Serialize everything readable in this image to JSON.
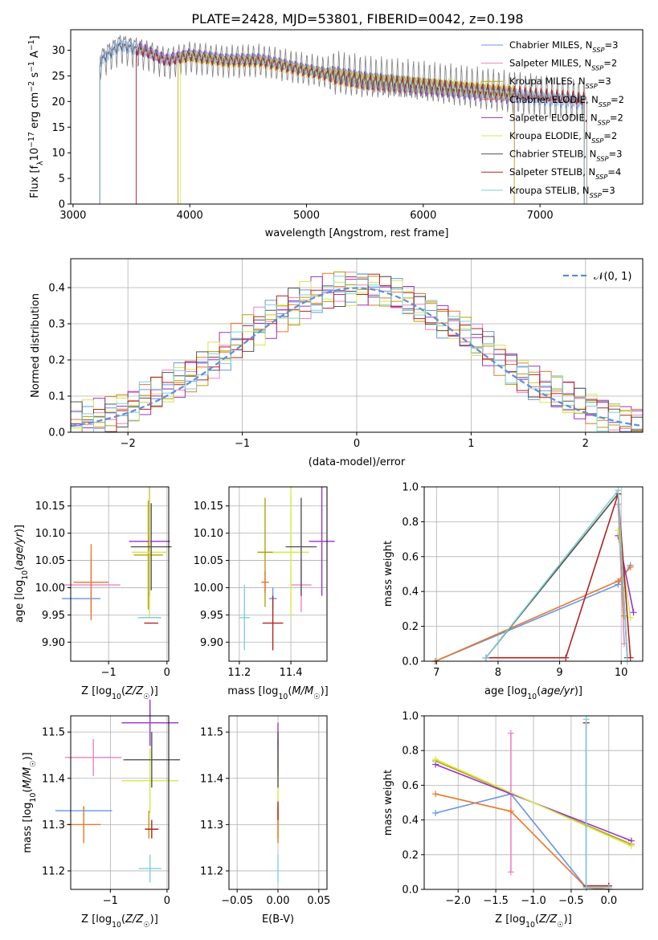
{
  "figure_title": "PLATE=2428, MJD=53801, FIBERID=0042, z=0.198",
  "models": [
    {
      "name": "Chabrier MILES",
      "nssp": "3",
      "color": "#6495ED"
    },
    {
      "name": "Salpeter MILES",
      "nssp": "2",
      "color": "#EE82C0"
    },
    {
      "name": "Kroupa MILES",
      "nssp": "3",
      "color": "#B8A000"
    },
    {
      "name": "Chabrier ELODIE",
      "nssp": "2",
      "color": "#E8782A"
    },
    {
      "name": "Salpeter ELODIE",
      "nssp": "2",
      "color": "#9932CC"
    },
    {
      "name": "Kroupa ELODIE",
      "nssp": "2",
      "color": "#D4E84A"
    },
    {
      "name": "Chabrier STELIB",
      "nssp": "3",
      "color": "#555555"
    },
    {
      "name": "Salpeter STELIB",
      "nssp": "4",
      "color": "#B22222"
    },
    {
      "name": "Kroupa STELIB",
      "nssp": "3",
      "color": "#7FD0D8"
    }
  ],
  "chart_data": [
    {
      "type": "line",
      "id": "spectrum",
      "xlabel": "wavelength [Angstrom, rest frame]",
      "ylabel": "Flux [f_λ 10^-17 erg cm^-2 s^-1 A^-1]",
      "xlim": [
        2980,
        7880
      ],
      "ylim": [
        0,
        34
      ],
      "xticks": [
        3000,
        4000,
        5000,
        6000,
        7000
      ],
      "yticks": [
        0,
        5,
        10,
        15,
        20,
        25,
        30
      ],
      "grid": false,
      "legend_position": "top-right",
      "continuum": {
        "x": [
          3230,
          3400,
          3600,
          3800,
          4000,
          4300,
          4600,
          5000,
          5500,
          6000,
          6500,
          7000,
          7500
        ],
        "y": [
          28,
          31,
          30,
          28,
          29,
          28,
          28,
          26,
          24,
          23,
          22,
          21,
          20
        ]
      },
      "data_range": {
        "start": 3230,
        "end": 7400
      },
      "model_starts": [
        3230,
        3230,
        3900,
        3540,
        3540,
        3920,
        3230,
        3540,
        3230
      ],
      "model_ends": [
        7380,
        7380,
        6780,
        6780,
        6780,
        6780,
        7380,
        7380,
        7380
      ]
    },
    {
      "type": "line",
      "id": "residuals",
      "xlabel": "(data-model)/error",
      "ylabel": "Normed distribution",
      "xlim": [
        -2.5,
        2.5
      ],
      "ylim": [
        0,
        0.48
      ],
      "xticks": [
        -2,
        -1,
        0,
        1,
        2
      ],
      "yticks": [
        0.0,
        0.1,
        0.2,
        0.3,
        0.4
      ],
      "grid": true,
      "bin_width": 0.1,
      "reference_curve": "N(0,1)",
      "legend_position": "top-right"
    },
    {
      "type": "scatter",
      "id": "age-vs-Z",
      "xlabel": "Z [log10(Z/Z☉)]",
      "ylabel": "age  [log10(age/yr)]",
      "xlim": [
        -1.65,
        0.03
      ],
      "ylim": [
        9.865,
        10.185
      ],
      "xticks": [
        -1,
        0
      ],
      "yticks": [
        9.9,
        9.95,
        10.0,
        10.05,
        10.1,
        10.15
      ],
      "grid": true,
      "x": [
        -1.47,
        -1.3,
        -0.32,
        -1.3,
        -0.3,
        -0.3,
        -0.27,
        -0.27,
        -0.3
      ],
      "y": [
        9.98,
        10.005,
        10.06,
        10.01,
        10.085,
        10.065,
        10.075,
        9.935,
        9.945
      ],
      "xerr": [
        0.33,
        0.5,
        0.25,
        0.3,
        0.35,
        0.3,
        0.35,
        0.12,
        0.2
      ],
      "yerr": [
        0.0,
        0.05,
        0.1,
        0.07,
        0.1,
        0.12,
        0.08,
        0.0,
        0.0
      ]
    },
    {
      "type": "scatter",
      "id": "age-vs-mass",
      "xlabel": "mass [log10(M/M☉)]",
      "ylabel": "",
      "xlim": [
        11.16,
        11.54
      ],
      "ylim": [
        9.865,
        10.185
      ],
      "xticks": [
        11.2,
        11.4
      ],
      "yticks": [
        9.9,
        9.95,
        10.0,
        10.05,
        10.1,
        10.15
      ],
      "grid": true,
      "x": [
        11.33,
        11.44,
        11.3,
        11.3,
        11.52,
        11.4,
        11.44,
        11.33,
        11.22
      ],
      "y": [
        9.98,
        10.005,
        10.065,
        10.01,
        10.085,
        10.065,
        10.075,
        9.935,
        9.945
      ],
      "xerr": [
        0.015,
        0.04,
        0.03,
        0.015,
        0.05,
        0.07,
        0.06,
        0.04,
        0.02
      ],
      "yerr": [
        0.02,
        0.05,
        0.1,
        0.02,
        0.1,
        0.12,
        0.09,
        0.05,
        0.06
      ]
    },
    {
      "type": "line",
      "id": "mass-weight-vs-age",
      "xlabel": "age  [log10(age/yr)]",
      "ylabel": "mass weight",
      "xlim": [
        6.8,
        10.35
      ],
      "ylim": [
        0,
        1
      ],
      "xticks": [
        7,
        8,
        9,
        10
      ],
      "yticks": [
        0.0,
        0.2,
        0.4,
        0.6,
        0.8,
        1.0
      ],
      "grid": true,
      "series": [
        {
          "x": [
            6.98,
            9.95,
            10.15
          ],
          "y": [
            0.0,
            0.44,
            0.55
          ]
        },
        {
          "x": [
            9.95,
            10.05
          ],
          "y": [
            0.9,
            0.1
          ]
        },
        {
          "x": [
            7.8,
            9.95,
            10.05
          ],
          "y": [
            0.02,
            0.96,
            0.26
          ]
        },
        {
          "x": [
            6.98,
            9.95,
            10.15
          ],
          "y": [
            0.0,
            0.46,
            0.54
          ]
        },
        {
          "x": [
            9.95,
            10.2
          ],
          "y": [
            0.72,
            0.28
          ]
        },
        {
          "x": [
            9.95,
            10.15
          ],
          "y": [
            0.75,
            0.25
          ]
        },
        {
          "x": [
            7.8,
            9.95,
            10.1
          ],
          "y": [
            0.02,
            0.96,
            0.02
          ]
        },
        {
          "x": [
            7.8,
            9.1,
            9.95,
            10.15
          ],
          "y": [
            0.02,
            0.02,
            0.96,
            0.02
          ]
        },
        {
          "x": [
            7.8,
            9.95,
            10.1
          ],
          "y": [
            0.02,
            0.98,
            0.0
          ]
        }
      ]
    },
    {
      "type": "scatter",
      "id": "mass-vs-Z",
      "xlabel": "Z [log10(Z/Z☉)]",
      "ylabel": "mass [log10(M/M☉)]",
      "xlim": [
        -1.7,
        0.03
      ],
      "ylim": [
        11.16,
        11.535
      ],
      "xticks": [
        -1,
        0
      ],
      "yticks": [
        11.2,
        11.3,
        11.4,
        11.5
      ],
      "grid": true,
      "x": [
        -1.47,
        -1.3,
        -0.32,
        -1.47,
        -0.3,
        -0.3,
        -0.27,
        -0.27,
        -0.3
      ],
      "y": [
        11.33,
        11.445,
        11.3,
        11.3,
        11.52,
        11.395,
        11.44,
        11.29,
        11.205
      ],
      "xerr": [
        0.5,
        0.5,
        0.0,
        0.3,
        0.5,
        0.5,
        0.5,
        0.12,
        0.2
      ],
      "yerr": [
        0.01,
        0.04,
        0.03,
        0.04,
        0.05,
        0.07,
        0.06,
        0.02,
        0.03
      ]
    },
    {
      "type": "scatter",
      "id": "mass-vs-EBV",
      "xlabel": "E(B-V)",
      "ylabel": "",
      "xlim": [
        -0.06,
        0.06
      ],
      "ylim": [
        11.16,
        11.535
      ],
      "xticks": [
        -0.05,
        0.0,
        0.05
      ],
      "yticks": [
        11.2,
        11.3,
        11.4,
        11.5
      ],
      "grid": true,
      "x": [
        0,
        0,
        0,
        0,
        0,
        0,
        0,
        0,
        0
      ],
      "y": [
        11.33,
        11.445,
        11.3,
        11.3,
        11.47,
        11.395,
        11.44,
        11.33,
        11.205
      ],
      "yerr": [
        0.01,
        0.04,
        0.03,
        0.04,
        0.05,
        0.07,
        0.06,
        0.02,
        0.03
      ]
    },
    {
      "type": "line",
      "id": "mass-weight-vs-Z",
      "xlabel": "Z [log10(Z/Z☉)]",
      "ylabel": "mass weight",
      "xlim": [
        -2.45,
        0.45
      ],
      "ylim": [
        0,
        1
      ],
      "xticks": [
        -2.0,
        -1.5,
        -1.0,
        -0.5,
        0.0
      ],
      "yticks": [
        0.0,
        0.2,
        0.4,
        0.6,
        0.8,
        1.0
      ],
      "grid": true,
      "series": [
        {
          "x": [
            -2.3,
            -1.3,
            -0.3,
            0.0
          ],
          "y": [
            0.44,
            0.55,
            0.01,
            0.0
          ]
        },
        {
          "x": [
            -1.3,
            -1.3
          ],
          "y": [
            0.9,
            0.1
          ]
        },
        {
          "x": [
            -2.3,
            0.3
          ],
          "y": [
            0.74,
            0.26
          ]
        },
        {
          "x": [
            -2.3,
            -1.3,
            -0.3,
            0.0
          ],
          "y": [
            0.55,
            0.45,
            0.01,
            0.0
          ]
        },
        {
          "x": [
            -2.3,
            0.3
          ],
          "y": [
            0.72,
            0.28
          ]
        },
        {
          "x": [
            -2.3,
            0.3
          ],
          "y": [
            0.75,
            0.25
          ]
        },
        {
          "x": [
            -0.3,
            -0.3,
            0.0
          ],
          "y": [
            0.96,
            0.02,
            0.02
          ]
        },
        {
          "x": [
            -0.3,
            -0.3,
            0.0
          ],
          "y": [
            0.96,
            0.02,
            0.02
          ]
        },
        {
          "x": [
            -0.3,
            -0.3,
            0.0
          ],
          "y": [
            0.98,
            0.01,
            0.01
          ]
        }
      ]
    }
  ]
}
